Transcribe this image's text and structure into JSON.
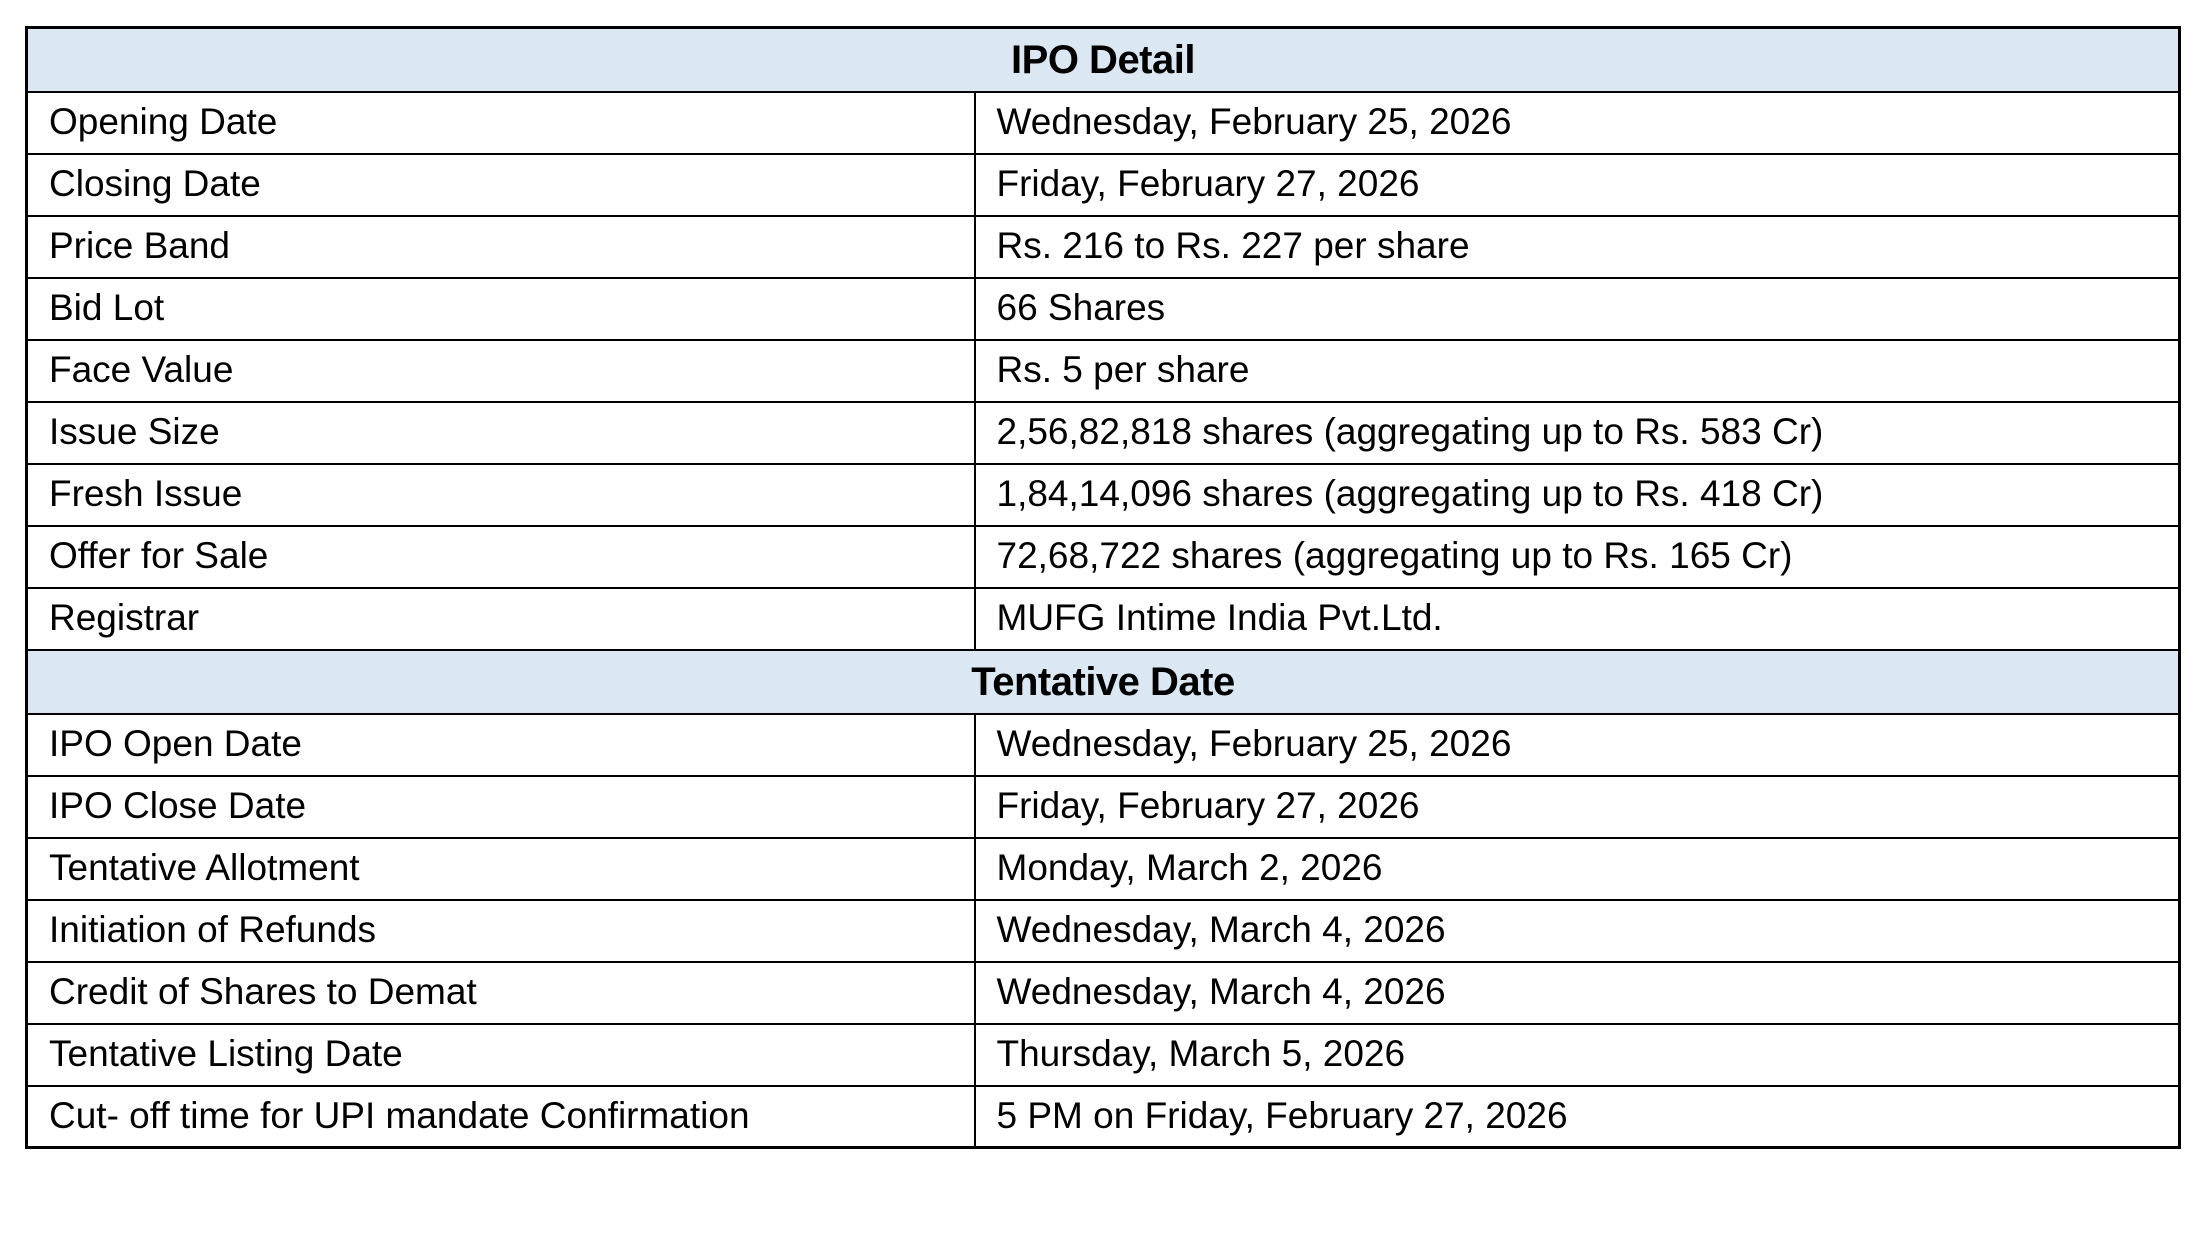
{
  "page": {
    "background_color": "#ffffff",
    "text_color": "#000000",
    "table_border_color": "#000000",
    "section_header_bg_color": "#dbe7f3"
  },
  "table": {
    "sections": [
      {
        "header": "IPO Detail",
        "rows": [
          {
            "label": "Opening Date",
            "value": "Wednesday, February 25, 2026"
          },
          {
            "label": "Closing Date",
            "value": "Friday, February 27, 2026"
          },
          {
            "label": "Price Band",
            "value": "Rs. 216 to Rs. 227 per share"
          },
          {
            "label": "Bid Lot",
            "value": "66 Shares"
          },
          {
            "label": "Face Value",
            "value": "Rs. 5 per share"
          },
          {
            "label": "Issue Size",
            "value": "2,56,82,818 shares (aggregating up to Rs. 583 Cr)"
          },
          {
            "label": "Fresh Issue",
            "value": "1,84,14,096 shares (aggregating up to Rs. 418 Cr)"
          },
          {
            "label": "Offer for Sale",
            "value": "72,68,722 shares (aggregating up to Rs. 165 Cr)"
          },
          {
            "label": "Registrar",
            "value": "MUFG Intime India Pvt.Ltd."
          }
        ]
      },
      {
        "header": "Tentative Date",
        "rows": [
          {
            "label": "IPO Open Date",
            "value": "Wednesday, February 25, 2026"
          },
          {
            "label": "IPO Close Date",
            "value": "Friday, February 27, 2026"
          },
          {
            "label": "Tentative Allotment",
            "value": "Monday, March 2, 2026"
          },
          {
            "label": "Initiation of Refunds",
            "value": "Wednesday, March 4, 2026"
          },
          {
            "label": "Credit of Shares to Demat",
            "value": "Wednesday, March 4, 2026"
          },
          {
            "label": "Tentative Listing Date",
            "value": "Thursday, March 5, 2026"
          },
          {
            "label": "Cut- off time for UPI mandate Confirmation",
            "value": "5 PM on Friday, February  27, 2026"
          }
        ]
      }
    ]
  }
}
